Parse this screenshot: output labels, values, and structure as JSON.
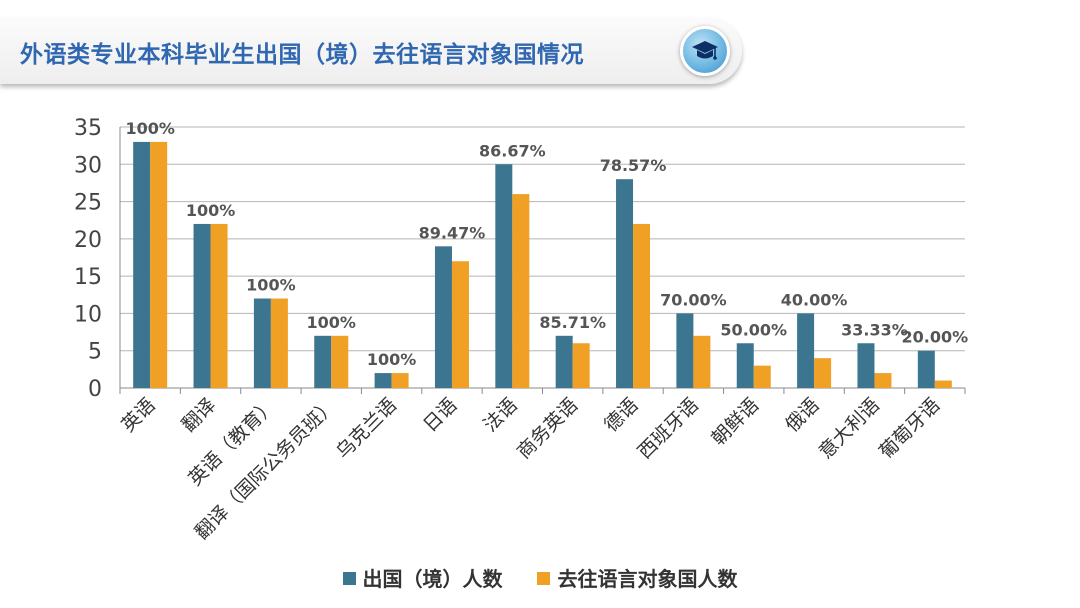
{
  "header": {
    "title": "外语类专业本科毕业生出国（境）去往语言对象国情况",
    "icon": "graduation-cap-icon"
  },
  "colors": {
    "series_abroad": "#3b7590",
    "series_target": "#f0a024",
    "title": "#2f67b0",
    "grid": "#b5b5b5",
    "label": "#555555"
  },
  "chart_data": {
    "type": "bar",
    "title": "",
    "xlabel": "",
    "ylabel": "",
    "ylim": [
      0,
      35
    ],
    "yticks": [
      0,
      5,
      10,
      15,
      20,
      25,
      30,
      35
    ],
    "grid": true,
    "legend_position": "bottom",
    "categories": [
      "英语",
      "翻译",
      "英语（教育）",
      "翻译（国际公务员班）",
      "乌克兰语",
      "日语",
      "法语",
      "商务英语",
      "德语",
      "西班牙语",
      "朝鲜语",
      "俄语",
      "意大利语",
      "葡萄牙语"
    ],
    "series": [
      {
        "name": "出国（境）人数",
        "values": [
          33,
          22,
          12,
          7,
          2,
          19,
          30,
          7,
          28,
          10,
          6,
          10,
          6,
          5
        ]
      },
      {
        "name": "去往语言对象国人数",
        "values": [
          33,
          22,
          12,
          7,
          2,
          17,
          26,
          6,
          22,
          7,
          3,
          4,
          2,
          1
        ]
      }
    ],
    "data_labels": [
      "100%",
      "100%",
      "100%",
      "100%",
      "100%",
      "89.47%",
      "86.67%",
      "85.71%",
      "78.57%",
      "70.00%",
      "50.00%",
      "40.00%",
      "33.33%",
      "20.00%"
    ]
  }
}
